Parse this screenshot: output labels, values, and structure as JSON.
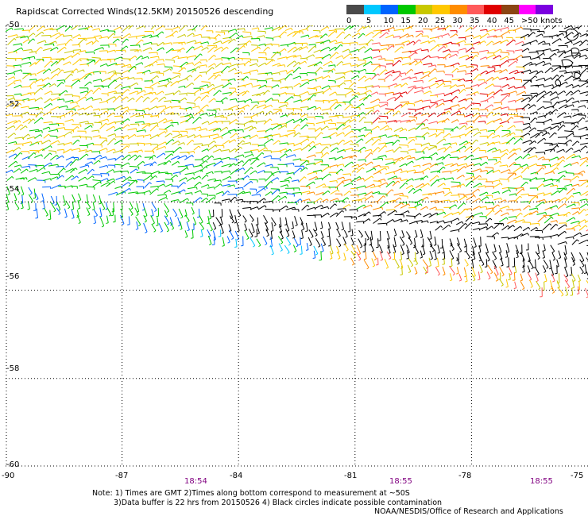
{
  "title": "Rapidscat Corrected Winds(12.5KM) 20150526 descending",
  "legend": {
    "units": "knots",
    "bins": [
      {
        "color": "#4a4a4a"
      },
      {
        "color": "#00c8ff"
      },
      {
        "color": "#0064ff"
      },
      {
        "color": "#00c800"
      },
      {
        "color": "#c8c800"
      },
      {
        "color": "#ffc800"
      },
      {
        "color": "#ff8c00"
      },
      {
        "color": "#ff5a5a"
      },
      {
        "color": "#e00000"
      },
      {
        "color": "#8b4513"
      },
      {
        "color": "#ff00ff"
      },
      {
        "color": "#7b00e0"
      }
    ],
    "labels": [
      "0",
      "5",
      "10",
      "15",
      "20",
      "25",
      "30",
      "35",
      "40",
      "45",
      ">50 knots"
    ]
  },
  "map": {
    "lat_labels": [
      "-50",
      "-52",
      "-54",
      "-56",
      "-58",
      "-60"
    ],
    "lon_labels": [
      "-90",
      "-87",
      "-84",
      "-81",
      "-78",
      "-75"
    ],
    "times": [
      "18:54",
      "18:55",
      "18:55"
    ],
    "gridlines": "dotted"
  },
  "notes": {
    "line1": "Note: 1) Times are GMT 2)Times along bottom correspond to measurement at ~50S",
    "line2": "3)Data buffer is 22 hrs from 20150526 4) Black circles indicate possible contamination",
    "credit": "NOAA/NESDIS/Office of Research and Applications"
  }
}
